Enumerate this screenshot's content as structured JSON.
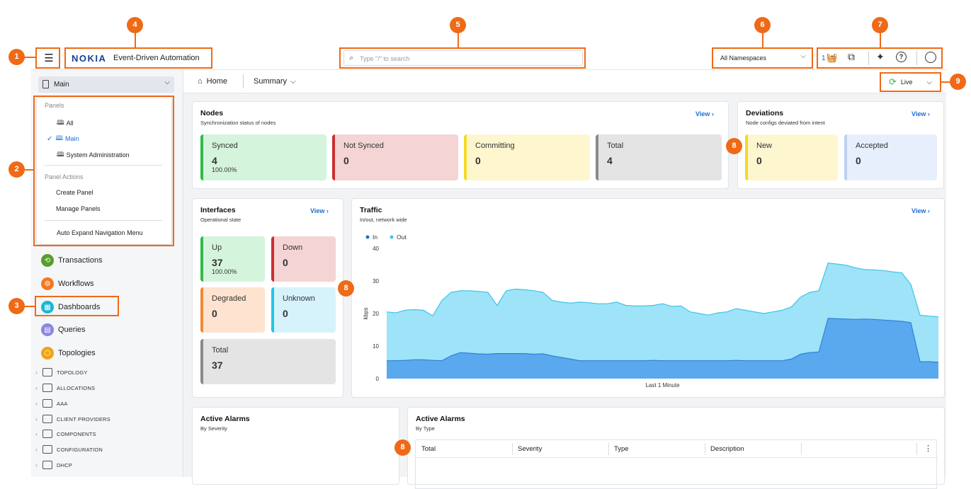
{
  "badges": [
    "1",
    "2",
    "3",
    "4",
    "5",
    "6",
    "7",
    "8",
    "9"
  ],
  "header": {
    "logo": "NOKIA",
    "app_name": "Event-Driven Automation",
    "search_placeholder": "Type \"/\" to search",
    "namespace": "All Namespaces",
    "basket_count": "1"
  },
  "sidebar": {
    "panel_select": "Main",
    "menu": {
      "section_panels": "Panels",
      "items": [
        "All",
        "Main",
        "System Administration"
      ],
      "section_actions": "Panel Actions",
      "actions": [
        "Create Panel",
        "Manage Panels"
      ],
      "auto_expand": "Auto Expand Navigation Menu"
    },
    "nav": [
      "Transactions",
      "Workflows",
      "Dashboards",
      "Queries",
      "Topologies"
    ],
    "tree": [
      "TOPOLOGY",
      "ALLOCATIONS",
      "AAA",
      "CLIENT PROVIDERS",
      "COMPONENTS",
      "CONFIGURATION",
      "DHCP"
    ]
  },
  "breadcrumb": {
    "home": "Home",
    "summary": "Summary",
    "live": "Live"
  },
  "nodes": {
    "title": "Nodes",
    "subtitle": "Synchronization status of nodes",
    "view": "View",
    "tiles": [
      {
        "label": "Synced",
        "value": "4",
        "pct": "100.00%"
      },
      {
        "label": "Not Synced",
        "value": "0"
      },
      {
        "label": "Committing",
        "value": "0"
      },
      {
        "label": "Total",
        "value": "4"
      }
    ]
  },
  "deviations": {
    "title": "Deviations",
    "subtitle": "Node configs deviated from intent",
    "view": "View",
    "tiles": [
      {
        "label": "New",
        "value": "0"
      },
      {
        "label": "Accepted",
        "value": "0"
      }
    ]
  },
  "interfaces": {
    "title": "Interfaces",
    "subtitle": "Operational state",
    "view": "View",
    "tiles": [
      {
        "label": "Up",
        "value": "37",
        "pct": "100.00%"
      },
      {
        "label": "Down",
        "value": "0"
      },
      {
        "label": "Degraded",
        "value": "0"
      },
      {
        "label": "Unknown",
        "value": "0"
      },
      {
        "label": "Total",
        "value": "37"
      }
    ]
  },
  "traffic": {
    "title": "Traffic",
    "subtitle": "In/out, network wide",
    "view": "View"
  },
  "alarms_severity": {
    "title": "Active Alarms",
    "subtitle": "By Severity"
  },
  "alarms_type": {
    "title": "Active Alarms",
    "subtitle": "By Type",
    "columns": [
      "Total",
      "Severity",
      "Type",
      "Description"
    ]
  },
  "colors": {
    "accent": "#ef6a17",
    "link": "#1a6fd0",
    "in": "#5aa8ee",
    "out": "#9ee3f7"
  },
  "chart_data": {
    "type": "area",
    "title": "",
    "xlabel": "Last 1 Minute",
    "ylabel": "kbps",
    "ylim": [
      0,
      40
    ],
    "yticks": [
      0,
      10,
      20,
      30,
      40
    ],
    "legend": "top-left",
    "series": [
      {
        "name": "In",
        "values": [
          5.5,
          5.5,
          5.6,
          5.8,
          5.8,
          5.6,
          5.5,
          7,
          8,
          7.8,
          7.6,
          7.5,
          7.7,
          7.7,
          7.7,
          7.7,
          7.5,
          7.6,
          7,
          6.5,
          6,
          5.5,
          5.5,
          5.5,
          5.5,
          5.5,
          5.5,
          5.5,
          5.5,
          5.6,
          5.5,
          5.5,
          5.5,
          5.5,
          5.5,
          5.5,
          5.5,
          5.5,
          5.6,
          5.5,
          5.5,
          5.5,
          5.5,
          5.5,
          6,
          7.5,
          8,
          8.2,
          18.5,
          18.4,
          18.3,
          18.2,
          18.3,
          18.2,
          18.0,
          17.8,
          17.6,
          17.2,
          5.2,
          5.2,
          5.0
        ]
      },
      {
        "name": "Out",
        "values": [
          20.5,
          20.2,
          21,
          21.2,
          21,
          19.3,
          24,
          26.5,
          27,
          27,
          26.8,
          26.5,
          22.5,
          27,
          27.5,
          27.3,
          27,
          26.5,
          24,
          23.5,
          23.2,
          23.5,
          23.3,
          23,
          23,
          23.5,
          22.5,
          22.3,
          22.3,
          22.5,
          23,
          22.2,
          22.3,
          20.5,
          20,
          19.5,
          20.2,
          20.5,
          21.5,
          21,
          20.5,
          20,
          20.5,
          21,
          22,
          25,
          26.5,
          27,
          35.5,
          35.2,
          34.8,
          34,
          33.5,
          33.4,
          33.2,
          32.8,
          32.5,
          29,
          19.5,
          19.2,
          19
        ]
      }
    ]
  }
}
